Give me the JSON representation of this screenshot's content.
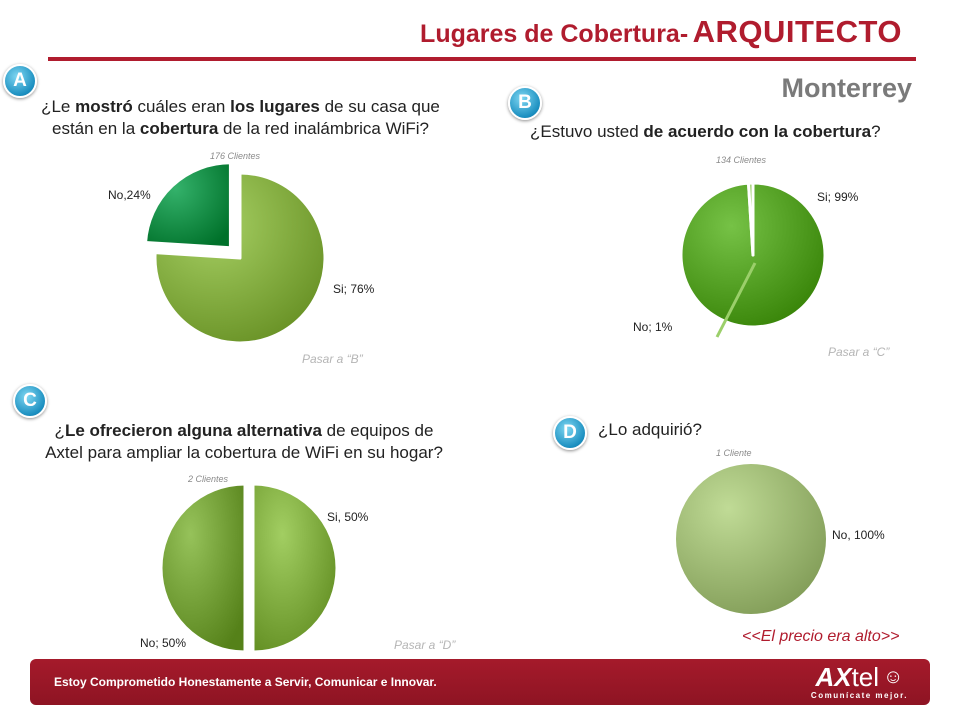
{
  "header": {
    "title_part1": "Lugares de Cobertura-",
    "title_part2": "ARQUITECTO",
    "city": "Monterrey"
  },
  "sections": {
    "A": {
      "badge": "A",
      "question_parts": [
        "¿Le ",
        "mostró",
        " cuáles eran ",
        "los lugares",
        " de su casa que",
        "están en la ",
        "cobertura",
        " de la red inalámbrica WiFi?"
      ],
      "count": "176 Clientes",
      "goto": "Pasar a “B”"
    },
    "B": {
      "badge": "B",
      "question_parts": [
        "¿Estuvo usted ",
        "de acuerdo con la cobertura",
        "?"
      ],
      "count": "134 Clientes",
      "goto": "Pasar a “C”"
    },
    "C": {
      "badge": "C",
      "question_parts": [
        "¿",
        "Le ofrecieron alguna alternativa",
        " de equipos de",
        "Axtel para ampliar la cobertura de WiFi en su hogar?"
      ],
      "count": "2 Clientes",
      "goto": "Pasar a “D”"
    },
    "D": {
      "badge": "D",
      "question_parts": [
        "¿Lo adquirió?"
      ],
      "count": "1 Cliente",
      "note": "<<El precio era alto>>"
    }
  },
  "footer": {
    "motto": "Estoy Comprometido Honestamente a Servir, Comunicar e Innovar.",
    "logo_ax": "AX",
    "logo_tel": "tel",
    "logo_tagline": "Comunícate mejor."
  },
  "chart_data": [
    {
      "type": "pie",
      "slices": [
        {
          "label": "Si; 76%",
          "value": 76,
          "color": "#7fa83c"
        },
        {
          "label": "No,24%",
          "value": 24,
          "color": "#0c8a43"
        }
      ]
    },
    {
      "type": "pie",
      "slices": [
        {
          "label": "Si; 99%",
          "value": 99,
          "color": "#4e9a1e"
        },
        {
          "label": "No; 1%",
          "value": 1,
          "color": "#8cbf5a"
        }
      ]
    },
    {
      "type": "pie",
      "slices": [
        {
          "label": "Si, 50%",
          "value": 50,
          "color": "#7aa63a"
        },
        {
          "label": "No; 50%",
          "value": 50,
          "color": "#6e9a32"
        }
      ]
    },
    {
      "type": "pie",
      "slices": [
        {
          "label": "No, 100%",
          "value": 100,
          "color": "#98b36e"
        }
      ]
    }
  ]
}
